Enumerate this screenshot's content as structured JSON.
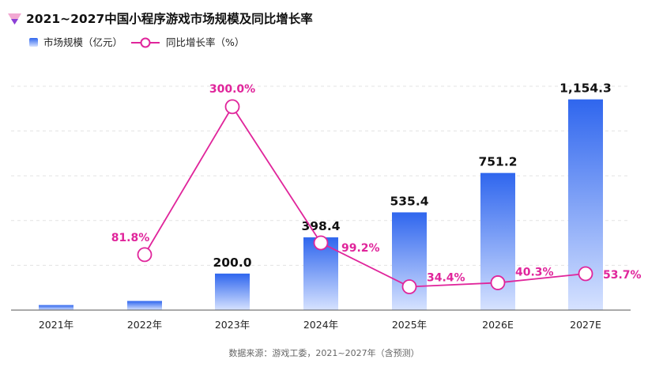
{
  "chart_data": {
    "type": "bar",
    "title": "2021~2027中国小程序游戏市场规模及同比增长率",
    "categories": [
      "2021年",
      "2022年",
      "2023年",
      "2024年",
      "2025年",
      "2026E",
      "2027E"
    ],
    "series": [
      {
        "name": "市场规模（亿元）",
        "type": "bar",
        "values": [
          27.6,
          50.0,
          200.0,
          398.4,
          535.4,
          751.2,
          1154.3
        ],
        "labels": [
          "",
          "",
          "200.0",
          "398.4",
          "535.4",
          "751.2",
          "1,154.3"
        ]
      },
      {
        "name": "同比增长率（%）",
        "type": "line",
        "values": [
          null,
          81.8,
          300.0,
          99.2,
          34.4,
          40.3,
          53.7
        ],
        "labels": [
          "",
          "81.8%",
          "300.0%",
          "99.2%",
          "34.4%",
          "40.3%",
          "53.7%"
        ]
      }
    ],
    "ylim_left": [
      0,
      1300
    ],
    "ylim_right": [
      0,
      350
    ],
    "grid": true,
    "legend": "top-left",
    "source": "数据来源：游戏工委，2021~2027年（含预测）",
    "colors": {
      "bar_top": "#2f66ee",
      "bar_bottom": "#d6e2ff",
      "line": "#e0259b",
      "logo_a": "#f2a8d2",
      "logo_b": "#8b3fd6"
    }
  }
}
